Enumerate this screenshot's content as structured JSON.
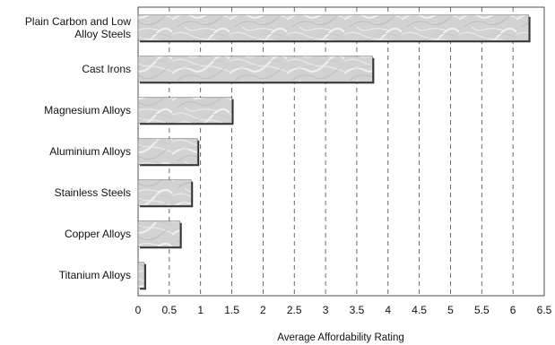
{
  "chart_data": {
    "type": "bar",
    "orientation": "horizontal",
    "categories": [
      [
        "Plain Carbon and Low",
        "Alloy Steels"
      ],
      [
        "Cast Irons"
      ],
      [
        "Magnesium Alloys"
      ],
      [
        "Aluminium Alloys"
      ],
      [
        "Stainless Steels"
      ],
      [
        "Copper Alloys"
      ],
      [
        "Titanium Alloys"
      ]
    ],
    "values": [
      6.25,
      3.75,
      1.5,
      0.95,
      0.85,
      0.67,
      0.1
    ],
    "title": "",
    "xlabel": "Average Affordability Rating",
    "ylabel": "",
    "xlim": [
      0,
      6.5
    ],
    "xticks": [
      0,
      0.5,
      1,
      1.5,
      2,
      2.5,
      3,
      3.5,
      4,
      4.5,
      5,
      5.5,
      6,
      6.5
    ],
    "xtick_labels": [
      "0",
      "0.5",
      "1",
      "1.5",
      "2",
      "2.5",
      "3",
      "3.5",
      "4",
      "4.5",
      "5",
      "5.5",
      "6",
      "6.5"
    ],
    "grid": "vertical-dashed",
    "legend": "none",
    "bar_fill": "marble-grey",
    "colors": {
      "bar_base": "#d4d4d4",
      "bar_shadow": "#333333",
      "grid": "#444444",
      "frame": "#222222"
    }
  }
}
